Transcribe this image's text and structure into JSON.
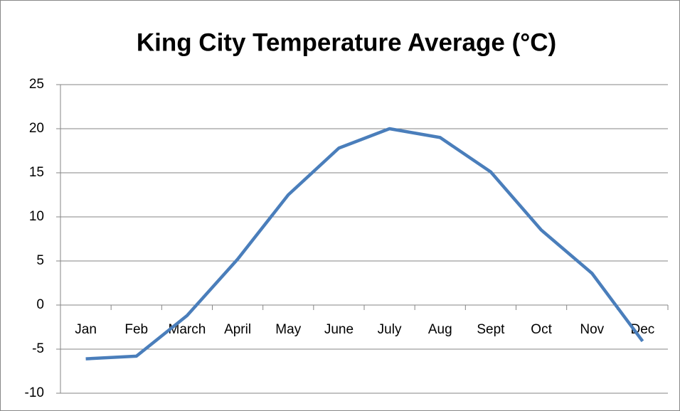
{
  "chart_data": {
    "type": "line",
    "title": "King City Temperature Average (°C)",
    "categories": [
      "Jan",
      "Feb",
      "March",
      "April",
      "May",
      "June",
      "July",
      "Aug",
      "Sept",
      "Oct",
      "Nov",
      "Dec"
    ],
    "series": [
      {
        "name": "Temperature",
        "color": "#4a7ebb",
        "values": [
          -6.1,
          -5.8,
          -1.2,
          5.2,
          12.5,
          17.8,
          20,
          19,
          15.1,
          8.5,
          3.6,
          -4.1
        ]
      }
    ],
    "ylim": [
      -10,
      25
    ],
    "yticks": [
      -10,
      -5,
      0,
      5,
      10,
      15,
      20,
      25
    ],
    "grid": true
  }
}
